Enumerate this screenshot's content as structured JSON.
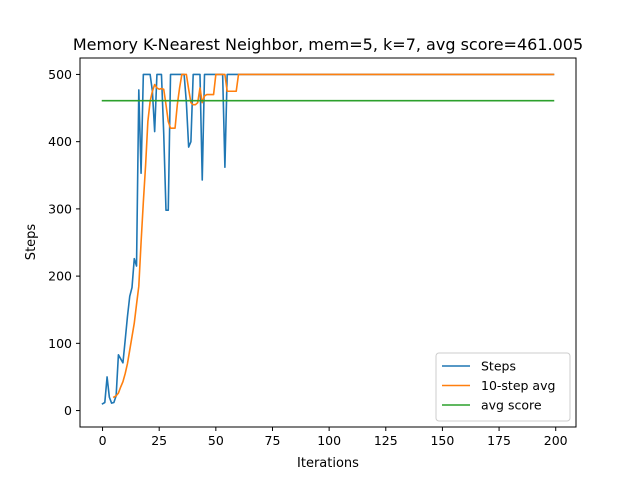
{
  "chart_data": {
    "type": "line",
    "title": "Memory K-Nearest Neighbor, mem=5, k=7, avg score=461.005",
    "xlabel": "Iterations",
    "ylabel": "Steps",
    "xlim": [
      -9.95,
      208.95
    ],
    "ylim": [
      -24.45,
      524.45
    ],
    "xticks": [
      0,
      25,
      50,
      75,
      100,
      125,
      150,
      175,
      200
    ],
    "yticks": [
      0,
      100,
      200,
      300,
      400,
      500
    ],
    "grid": false,
    "legend_position": "lower right",
    "series": [
      {
        "name": "Steps",
        "color": "#1f77b4",
        "x": [
          0,
          1,
          2,
          3,
          4,
          5,
          6,
          7,
          8,
          9,
          10,
          11,
          12,
          13,
          14,
          15,
          16,
          17,
          18,
          19,
          20,
          21,
          22,
          23,
          24,
          25,
          26,
          27,
          28,
          29,
          30,
          31,
          32,
          33,
          34,
          35,
          36,
          37,
          38,
          39,
          40,
          41,
          42,
          43,
          44,
          45,
          46,
          47,
          48,
          49,
          50,
          51,
          52,
          53,
          54,
          55,
          56,
          57,
          58,
          59,
          60,
          61,
          62,
          63,
          64,
          65,
          66,
          67,
          68,
          69,
          70,
          71,
          72,
          73,
          74,
          75,
          76,
          77,
          78,
          79,
          80,
          81,
          82,
          83,
          84,
          85,
          86,
          87,
          88,
          89,
          90,
          91,
          92,
          93,
          94,
          95,
          96,
          97,
          98,
          99,
          100,
          101,
          102,
          103,
          104,
          105,
          106,
          107,
          108,
          109,
          110,
          111,
          112,
          113,
          114,
          115,
          116,
          117,
          118,
          119,
          120,
          121,
          122,
          123,
          124,
          125,
          126,
          127,
          128,
          129,
          130,
          131,
          132,
          133,
          134,
          135,
          136,
          137,
          138,
          139,
          140,
          141,
          142,
          143,
          144,
          145,
          146,
          147,
          148,
          149,
          150,
          151,
          152,
          153,
          154,
          155,
          156,
          157,
          158,
          159,
          160,
          161,
          162,
          163,
          164,
          165,
          166,
          167,
          168,
          169,
          170,
          171,
          172,
          173,
          174,
          175,
          176,
          177,
          178,
          179,
          180,
          181,
          182,
          183,
          184,
          185,
          186,
          187,
          188,
          189,
          190,
          191,
          192,
          193,
          194,
          195,
          196,
          197,
          198,
          199
        ],
        "y": [
          10,
          12,
          50,
          20,
          11,
          12,
          22,
          83,
          77,
          71,
          105,
          140,
          170,
          183,
          226,
          215,
          477,
          353,
          500,
          500,
          500,
          500,
          475,
          415,
          500,
          500,
          500,
          412,
          298,
          298,
          500,
          500,
          500,
          500,
          500,
          500,
          500,
          458,
          392,
          400,
          500,
          500,
          500,
          500,
          343,
          500,
          500,
          500,
          500,
          500,
          500,
          500,
          500,
          500,
          362,
          500,
          500,
          500,
          500,
          500,
          500,
          500,
          500,
          500,
          500,
          500,
          500,
          500,
          500,
          500,
          500,
          500,
          500,
          500,
          500,
          500,
          500,
          500,
          500,
          500,
          500,
          500,
          500,
          500,
          500,
          500,
          500,
          500,
          500,
          500,
          500,
          500,
          500,
          500,
          500,
          500,
          500,
          500,
          500,
          500,
          500,
          500,
          500,
          500,
          500,
          500,
          500,
          500,
          500,
          500,
          500,
          500,
          500,
          500,
          500,
          500,
          500,
          500,
          500,
          500,
          500,
          500,
          500,
          500,
          500,
          500,
          500,
          500,
          500,
          500,
          500,
          500,
          500,
          500,
          500,
          500,
          500,
          500,
          500,
          500,
          500,
          500,
          500,
          500,
          500,
          500,
          500,
          500,
          500,
          500,
          500,
          500,
          500,
          500,
          500,
          500,
          500,
          500,
          500,
          500,
          500,
          500,
          500,
          500,
          500,
          500,
          500,
          500,
          500,
          500,
          500,
          500,
          500,
          500,
          500,
          500,
          500,
          500,
          500,
          500,
          500,
          500,
          500,
          500,
          500,
          500,
          500,
          500,
          500,
          500,
          500,
          500,
          500,
          500,
          500,
          500,
          500,
          500,
          500,
          500
        ]
      },
      {
        "name": "10-step avg",
        "color": "#ff7f0e",
        "x": [
          5,
          6,
          7,
          8,
          9,
          10,
          11,
          12,
          13,
          14,
          15,
          16,
          17,
          18,
          19,
          20,
          21,
          22,
          23,
          24,
          25,
          26,
          27,
          28,
          29,
          30,
          31,
          32,
          33,
          34,
          35,
          36,
          37,
          38,
          39,
          40,
          41,
          42,
          43,
          44,
          45,
          46,
          47,
          48,
          49,
          50,
          51,
          52,
          53,
          54,
          55,
          56,
          57,
          58,
          59,
          60,
          61,
          62,
          63,
          64,
          65,
          66,
          67,
          68,
          69,
          70,
          71,
          72,
          73,
          74,
          75,
          76,
          77,
          78,
          79,
          80,
          81,
          82,
          83,
          84,
          85,
          86,
          87,
          88,
          89,
          90,
          91,
          92,
          93,
          94,
          95,
          96,
          97,
          98,
          99,
          100,
          101,
          102,
          103,
          104,
          105,
          106,
          107,
          108,
          109,
          110,
          111,
          112,
          113,
          114,
          115,
          116,
          117,
          118,
          119,
          120,
          121,
          122,
          123,
          124,
          125,
          126,
          127,
          128,
          129,
          130,
          131,
          132,
          133,
          134,
          135,
          136,
          137,
          138,
          139,
          140,
          141,
          142,
          143,
          144,
          145,
          146,
          147,
          148,
          149,
          150,
          151,
          152,
          153,
          154,
          155,
          156,
          157,
          158,
          159,
          160,
          161,
          162,
          163,
          164,
          165,
          166,
          167,
          168,
          169,
          170,
          171,
          172,
          173,
          174,
          175,
          176,
          177,
          178,
          179,
          180,
          181,
          182,
          183,
          184,
          185,
          186,
          187,
          188,
          189,
          190,
          191,
          192,
          193,
          194,
          195,
          196,
          197,
          198,
          199
        ],
        "y": [
          20,
          22,
          26,
          35,
          43,
          55,
          70,
          90,
          110,
          130,
          158,
          185,
          250,
          310,
          365,
          430,
          460,
          475,
          485,
          480,
          478,
          479,
          478,
          455,
          430,
          420,
          420,
          420,
          455,
          480,
          500,
          500,
          500,
          478,
          458,
          455,
          455,
          458,
          480,
          458,
          468,
          470,
          470,
          470,
          470,
          500,
          500,
          500,
          500,
          500,
          475,
          475,
          475,
          475,
          475,
          500,
          500,
          500,
          500,
          500,
          500,
          500,
          500,
          500,
          500,
          500,
          500,
          500,
          500,
          500,
          500,
          500,
          500,
          500,
          500,
          500,
          500,
          500,
          500,
          500,
          500,
          500,
          500,
          500,
          500,
          500,
          500,
          500,
          500,
          500,
          500,
          500,
          500,
          500,
          500,
          500,
          500,
          500,
          500,
          500,
          500,
          500,
          500,
          500,
          500,
          500,
          500,
          500,
          500,
          500,
          500,
          500,
          500,
          500,
          500,
          500,
          500,
          500,
          500,
          500,
          500,
          500,
          500,
          500,
          500,
          500,
          500,
          500,
          500,
          500,
          500,
          500,
          500,
          500,
          500,
          500,
          500,
          500,
          500,
          500,
          500,
          500,
          500,
          500,
          500,
          500,
          500,
          500,
          500,
          500,
          500,
          500,
          500,
          500,
          500,
          500,
          500,
          500,
          500,
          500,
          500,
          500,
          500,
          500,
          500,
          500,
          500,
          500,
          500,
          500,
          500,
          500,
          500,
          500,
          500,
          500,
          500,
          500,
          500,
          500,
          500,
          500,
          500,
          500,
          500,
          500,
          500,
          500,
          500,
          500,
          500,
          500,
          500,
          500,
          500
        ]
      },
      {
        "name": "avg score",
        "color": "#2ca02c",
        "x": [
          0,
          199
        ],
        "y": [
          461.005,
          461.005
        ]
      }
    ]
  }
}
